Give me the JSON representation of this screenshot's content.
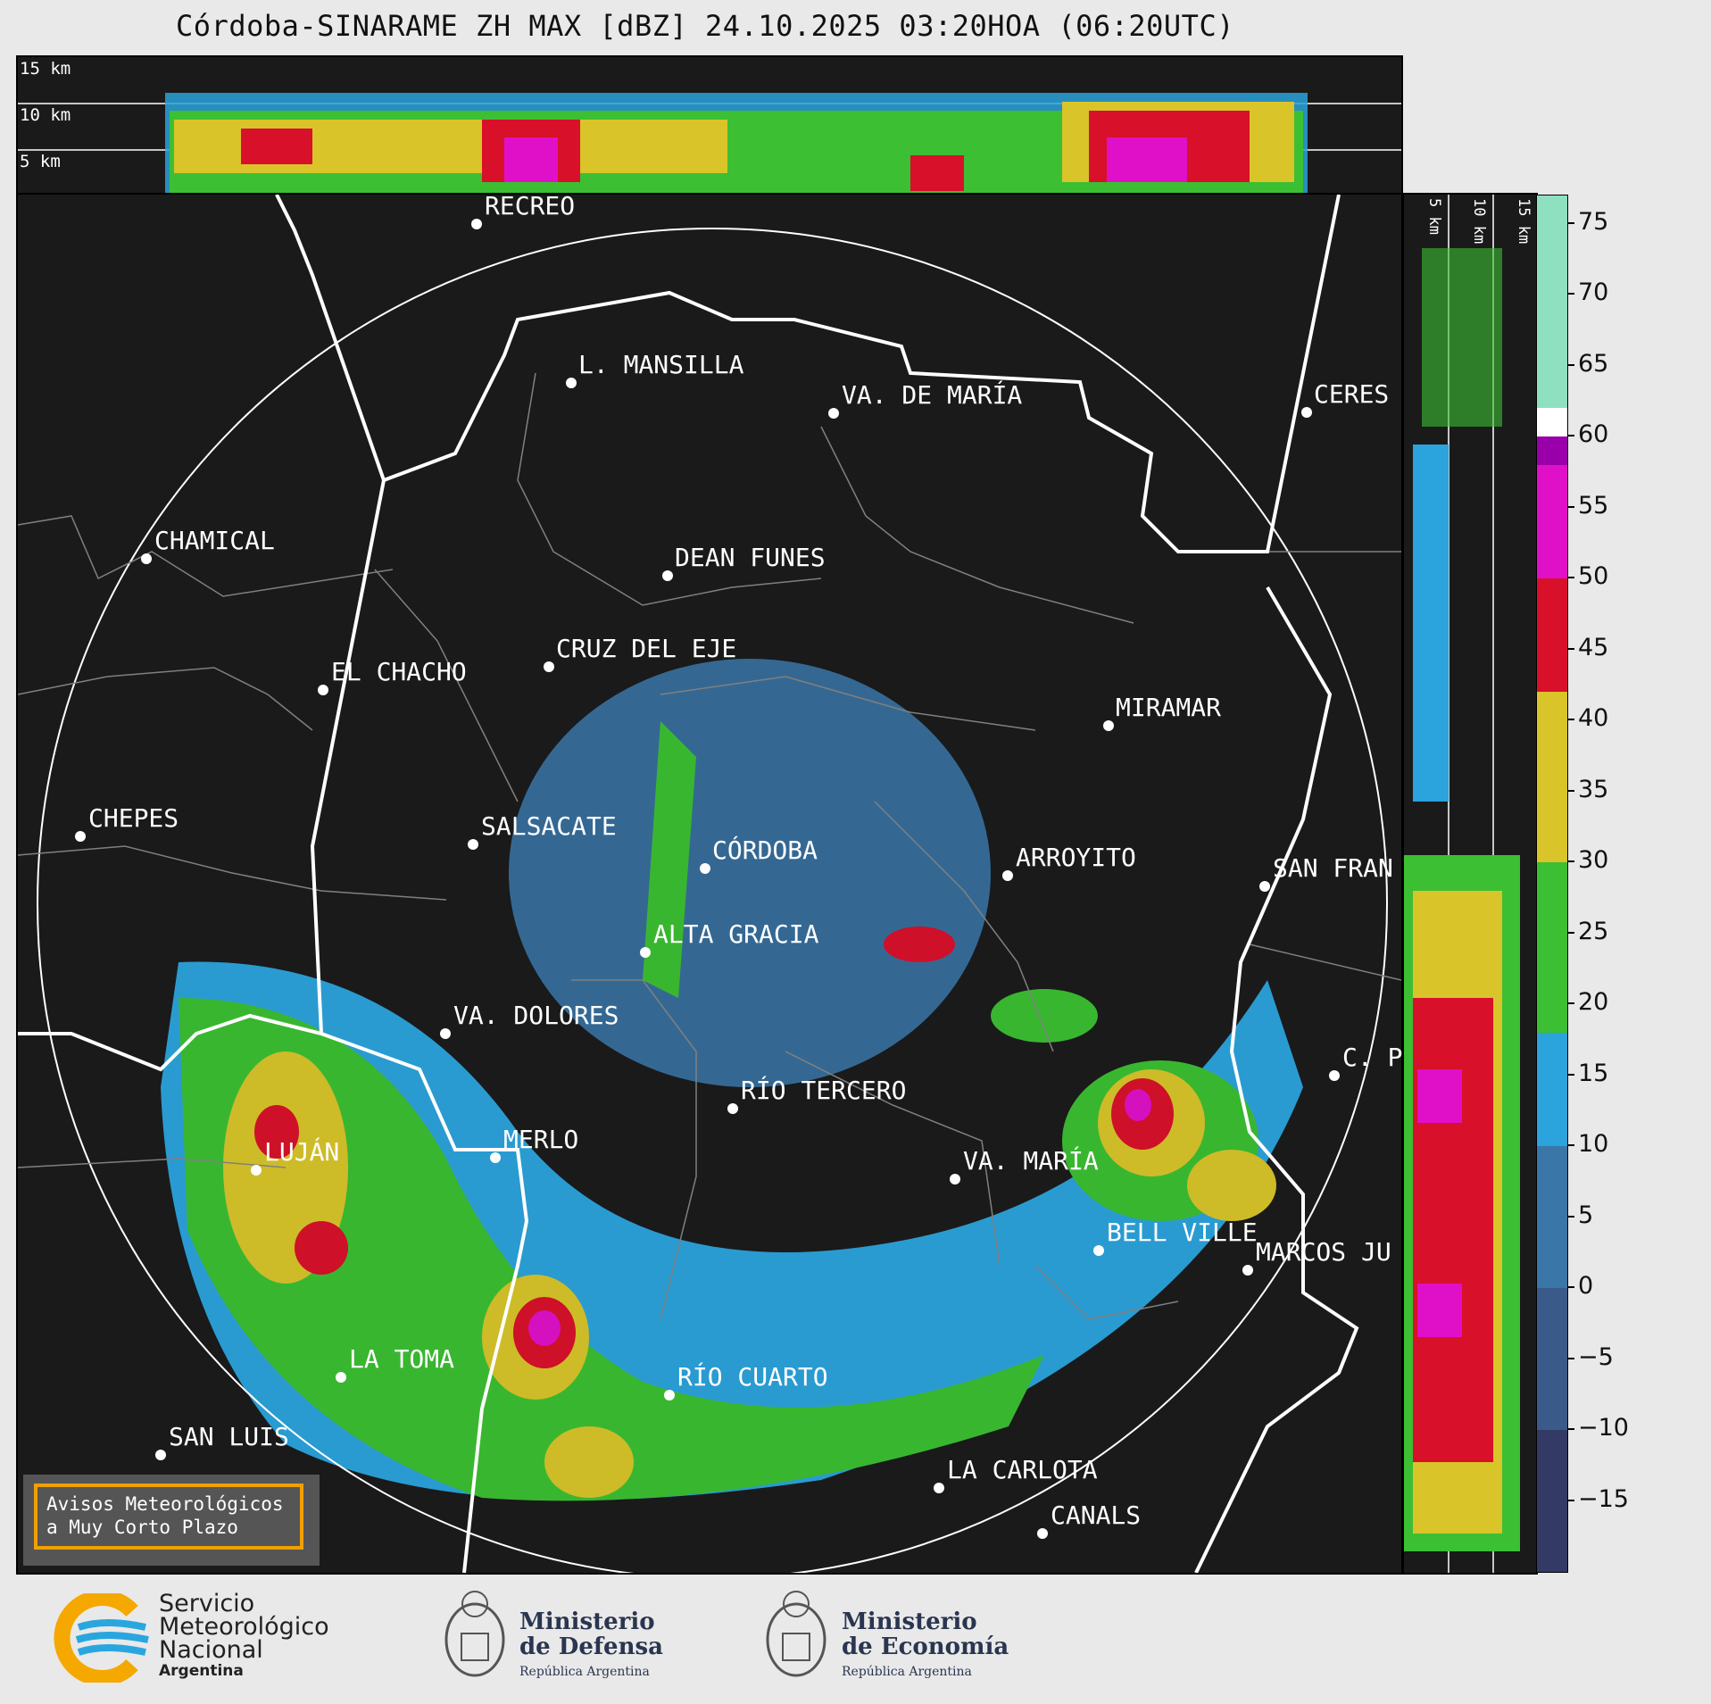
{
  "title": "Córdoba-SINARAME ZH MAX [dBZ] 24.10.2025 03:20HOA (06:20UTC)",
  "top_panel": {
    "levels": [
      "15 km",
      "10 km",
      "5 km"
    ]
  },
  "right_panel": {
    "levels": [
      "5 km",
      "10 km",
      "15 km"
    ]
  },
  "cities": [
    {
      "name": "RECREO"
    },
    {
      "name": "L. MANSILLA"
    },
    {
      "name": "VA. DE MARÍA"
    },
    {
      "name": "CERES"
    },
    {
      "name": "CHAMICAL"
    },
    {
      "name": "DEAN FUNES"
    },
    {
      "name": "CRUZ DEL EJE"
    },
    {
      "name": "EL CHACHO"
    },
    {
      "name": "MIRAMAR"
    },
    {
      "name": "CHEPES"
    },
    {
      "name": "SALSACATE"
    },
    {
      "name": "CÓRDOBA"
    },
    {
      "name": "ARROYITO"
    },
    {
      "name": "SAN FRAN"
    },
    {
      "name": "ALTA GRACIA"
    },
    {
      "name": "VA. DOLORES"
    },
    {
      "name": "C. P"
    },
    {
      "name": "RÍO TERCERO"
    },
    {
      "name": "MERLO"
    },
    {
      "name": "LUJÁN"
    },
    {
      "name": "VA. MARÍA"
    },
    {
      "name": "BELL VILLE"
    },
    {
      "name": "MARCOS JU"
    },
    {
      "name": "LA TOMA"
    },
    {
      "name": "RÍO CUARTO"
    },
    {
      "name": "SAN LUIS"
    },
    {
      "name": "LA CARLOTA"
    },
    {
      "name": "CANALS"
    }
  ],
  "colorbar": {
    "unit": "dBZ",
    "min": -20,
    "max": 77,
    "ticks": [
      "75",
      "70",
      "65",
      "60",
      "55",
      "50",
      "45",
      "40",
      "35",
      "30",
      "25",
      "20",
      "15",
      "10",
      "5",
      "0",
      "−5",
      "−10",
      "−15"
    ],
    "tick_values": [
      75,
      70,
      65,
      60,
      55,
      50,
      45,
      40,
      35,
      30,
      25,
      20,
      15,
      10,
      5,
      0,
      -5,
      -10,
      -15
    ],
    "bands": [
      {
        "from": -20,
        "to": -10,
        "color": "#333a66"
      },
      {
        "from": -10,
        "to": 0,
        "color": "#3a5a8a"
      },
      {
        "from": 0,
        "to": 10,
        "color": "#3a77a8"
      },
      {
        "from": 10,
        "to": 18,
        "color": "#2ba3dc"
      },
      {
        "from": 18,
        "to": 30,
        "color": "#3cbf32"
      },
      {
        "from": 30,
        "to": 42,
        "color": "#d9c42a"
      },
      {
        "from": 42,
        "to": 50,
        "color": "#d8102a"
      },
      {
        "from": 50,
        "to": 58,
        "color": "#e010c8"
      },
      {
        "from": 58,
        "to": 60,
        "color": "#9900aa"
      },
      {
        "from": 60,
        "to": 62,
        "color": "#ffffff"
      },
      {
        "from": 62,
        "to": 77,
        "color": "#8ee0c0"
      }
    ]
  },
  "warning_box": {
    "line1": "Avisos Meteorológicos",
    "line2": "a Muy Corto Plazo"
  },
  "logos": {
    "smn": {
      "line1": "Servicio",
      "line2": "Meteorológico",
      "line3": "Nacional",
      "line4": "Argentina"
    },
    "defensa": {
      "line1": "Ministerio",
      "line2": "de Defensa",
      "line3": "República Argentina"
    },
    "economia": {
      "line1": "Ministerio",
      "line2": "de Economía",
      "line3": "República Argentina"
    }
  }
}
